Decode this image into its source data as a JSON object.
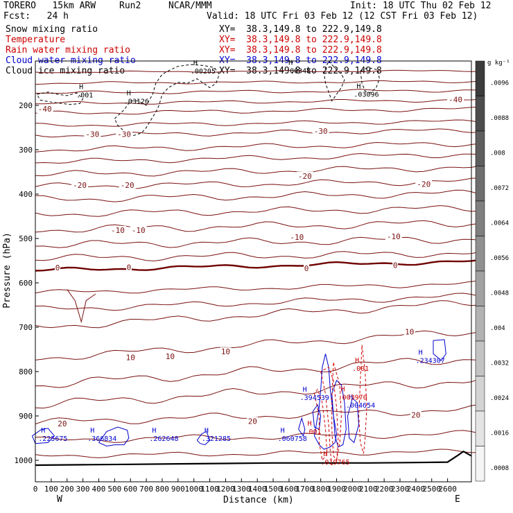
{
  "header": {
    "model": "TORERO   15km ARW",
    "run": "Run2",
    "org": "NCAR/MMM",
    "init": "Init: 18 UTC Thu 02 Feb 12",
    "fcst": "Fcst:   24 h",
    "valid": "Valid: 18 UTC Fri 03 Feb 12 (12 CST Fri 03 Feb 12)"
  },
  "fields": [
    {
      "name": "Snow mixing ratio",
      "color": "#000000",
      "xy": "XY=  38.3,149.8 to 222.9,149.8"
    },
    {
      "name": "Temperature",
      "color": "#cc0000",
      "xy": "XY=  38.3,149.8 to 222.9,149.8"
    },
    {
      "name": "Rain water mixing ratio",
      "color": "#cc0000",
      "xy": "XY=  38.3,149.8 to 222.9,149.8"
    },
    {
      "name": "Cloud water mixing ratio",
      "color": "#0000cc",
      "xy": "XY=  38.3,149.8 to 222.9,149.8"
    },
    {
      "name": "Cloud ice mixing ratio",
      "color": "#000000",
      "xy": "XY=  38.3,149.8 to 222.9,149.8"
    }
  ],
  "colors": {
    "temperature": "#7a1010",
    "freezing": "#6e0000",
    "rain": "#cc0000",
    "cloud_water": "#0000cc",
    "ice": "#000000",
    "terrain": "#000000"
  },
  "chart_data": {
    "type": "contour-cross-section",
    "xlabel": "Distance (km)",
    "ylabel": "Pressure (hPa)",
    "xlim": [
      0,
      2750
    ],
    "ylim": [
      1050,
      100
    ],
    "x_ticks": [
      "0",
      "100",
      "200",
      "300",
      "400",
      "500",
      "600",
      "700",
      "800",
      "900",
      "1000",
      "1100",
      "1200",
      "1300",
      "1400",
      "1500",
      "1600",
      "1700",
      "1800",
      "1900",
      "2000",
      "2100",
      "2200",
      "2300",
      "2400",
      "2500",
      "2600"
    ],
    "y_ticks": [
      "200",
      "300",
      "400",
      "500",
      "600",
      "700",
      "800",
      "900",
      "1000"
    ],
    "x_ends": [
      "W",
      "E"
    ],
    "colorbar": {
      "unit": "g kg⁻¹",
      "ticks": [
        ".0096",
        ".0088",
        ".008",
        ".0072",
        ".0064",
        ".0056",
        ".0048",
        ".004",
        ".0032",
        ".0024",
        ".0016",
        ".0008"
      ]
    },
    "temperature_labels": [
      {
        "text": "-40",
        "x": 60,
        "p": 208
      },
      {
        "text": "-30",
        "x": 360,
        "p": 265
      },
      {
        "text": "-30",
        "x": 560,
        "p": 265
      },
      {
        "text": "-30",
        "x": 1800,
        "p": 258
      },
      {
        "text": "-40",
        "x": 2650,
        "p": 187
      },
      {
        "text": "-20",
        "x": 280,
        "p": 380
      },
      {
        "text": "-20",
        "x": 580,
        "p": 380
      },
      {
        "text": "-20",
        "x": 1700,
        "p": 359
      },
      {
        "text": "-20",
        "x": 2450,
        "p": 377
      },
      {
        "text": "-10",
        "x": 520,
        "p": 481
      },
      {
        "text": "-10",
        "x": 650,
        "p": 481
      },
      {
        "text": "-10",
        "x": 1650,
        "p": 497
      },
      {
        "text": "-10",
        "x": 2260,
        "p": 495
      },
      {
        "text": "0",
        "x": 140,
        "p": 566
      },
      {
        "text": "0",
        "x": 590,
        "p": 565
      },
      {
        "text": "0",
        "x": 1710,
        "p": 567
      },
      {
        "text": "0",
        "x": 2270,
        "p": 560
      },
      {
        "text": "10",
        "x": 600,
        "p": 768
      },
      {
        "text": "10",
        "x": 850,
        "p": 766
      },
      {
        "text": "10",
        "x": 1200,
        "p": 755
      },
      {
        "text": "10",
        "x": 2360,
        "p": 710
      },
      {
        "text": "20",
        "x": 170,
        "p": 917
      },
      {
        "text": "20",
        "x": 1370,
        "p": 912
      },
      {
        "text": "20",
        "x": 2400,
        "p": 898
      }
    ],
    "snow_labels": [
      {
        "text": ".001",
        "x": 320,
        "p": 176
      },
      {
        "text": ".00205",
        "x": 1040,
        "p": 122
      },
      {
        "text": ".00348",
        "x": 1640,
        "p": 121
      },
      {
        "text": ".03126",
        "x": 620,
        "p": 190
      },
      {
        "text": ".03096",
        "x": 2070,
        "p": 174
      }
    ],
    "cloud_water_labels": [
      {
        "text": ".225675",
        "x": 80,
        "p": 950
      },
      {
        "text": ".366834",
        "x": 390,
        "p": 950
      },
      {
        "text": ".262648",
        "x": 780,
        "p": 950
      },
      {
        "text": ".321285",
        "x": 1110,
        "p": 950
      },
      {
        "text": ".060758",
        "x": 1590,
        "p": 950
      },
      {
        "text": ".394539",
        "x": 1730,
        "p": 858
      },
      {
        "text": ".004654",
        "x": 2020,
        "p": 875
      },
      {
        "text": ".234307",
        "x": 2460,
        "p": 774
      }
    ],
    "rain_labels": [
      {
        "text": ".001",
        "x": 2060,
        "p": 792
      },
      {
        "text": ".003970",
        "x": 1970,
        "p": 857
      },
      {
        "text": ".001",
        "x": 1760,
        "p": 934
      },
      {
        "text": ".019765",
        "x": 1860,
        "p": 1003
      }
    ]
  }
}
